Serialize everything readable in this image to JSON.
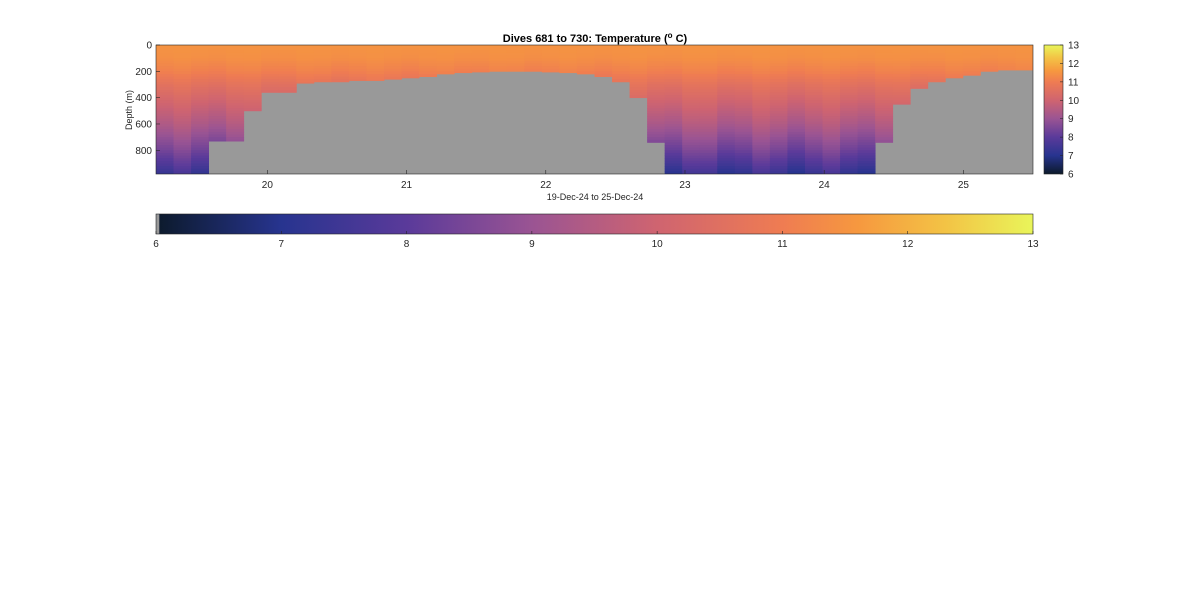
{
  "chart_data": {
    "type": "heatmap",
    "title_main": "Dives 681 to 730: Temperature (",
    "title_sup": "o",
    "title_end": " C)",
    "xlabel": "19-Dec-24 to 25-Dec-24",
    "ylabel": "Depth (m)",
    "xlim": [
      19.2,
      25.5
    ],
    "ylim": [
      0,
      980
    ],
    "y_reversed": true,
    "xticks": [
      20,
      21,
      22,
      23,
      24,
      25
    ],
    "xtick_labels": [
      "20",
      "21",
      "22",
      "23",
      "24",
      "25"
    ],
    "yticks": [
      0,
      200,
      400,
      600,
      800
    ],
    "ytick_labels": [
      "0",
      "200",
      "400",
      "600",
      "800"
    ],
    "color_limits": [
      6,
      13
    ],
    "colorbar_ticks": [
      6,
      7,
      8,
      9,
      10,
      11,
      12,
      13
    ],
    "colorbar_tick_labels": [
      "6",
      "7",
      "8",
      "9",
      "10",
      "11",
      "12",
      "13"
    ],
    "nodata_color": "#999999",
    "colormap_stops": [
      {
        "v": 6.0,
        "c": "#0c1a2b"
      },
      {
        "v": 7.0,
        "c": "#27348f"
      },
      {
        "v": 8.0,
        "c": "#5a3a9a"
      },
      {
        "v": 9.0,
        "c": "#9a5493"
      },
      {
        "v": 10.0,
        "c": "#cf6470"
      },
      {
        "v": 11.0,
        "c": "#ef7c52"
      },
      {
        "v": 11.6,
        "c": "#f6983f"
      },
      {
        "v": 12.3,
        "c": "#f3c345"
      },
      {
        "v": 13.0,
        "c": "#e9f55a"
      }
    ],
    "dives": {
      "time_start": 19.2,
      "time_end": 25.5,
      "count": 50,
      "max_depth_m": [
        980,
        980,
        980,
        730,
        730,
        500,
        360,
        360,
        290,
        280,
        280,
        270,
        270,
        260,
        250,
        240,
        220,
        210,
        205,
        200,
        200,
        200,
        205,
        210,
        220,
        240,
        280,
        400,
        740,
        980,
        980,
        980,
        980,
        980,
        980,
        980,
        980,
        980,
        980,
        980,
        980,
        740,
        450,
        330,
        280,
        250,
        230,
        200,
        190,
        190
      ]
    },
    "temperature_profile": {
      "depth_m": [
        0,
        100,
        200,
        300,
        400,
        500,
        600,
        700,
        800,
        900,
        980
      ],
      "temp_c": [
        11.5,
        11.4,
        11.1,
        10.6,
        10.2,
        9.8,
        9.4,
        8.9,
        8.4,
        7.8,
        7.3
      ]
    }
  }
}
